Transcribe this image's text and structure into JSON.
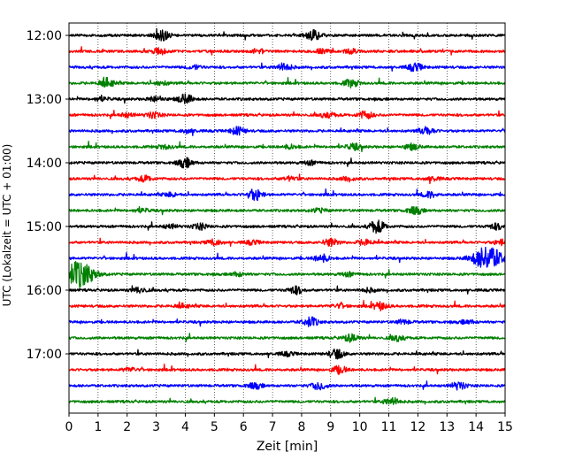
{
  "chart_data": {
    "type": "line",
    "title": "",
    "xlabel": "Zeit  [min]",
    "ylabel": "UTC (Lokalzeit = UTC + 01:00)",
    "xlim": [
      0,
      15
    ],
    "x_ticks": [
      "0",
      "1",
      "2",
      "3",
      "4",
      "5",
      "6",
      "7",
      "8",
      "9",
      "10",
      "11",
      "12",
      "13",
      "14",
      "15"
    ],
    "y_ticks": [
      "12:00",
      "13:00",
      "14:00",
      "15:00",
      "16:00",
      "17:00"
    ],
    "grid": "vertical dotted",
    "trace_colors": [
      "#000000",
      "#ff0000",
      "#0000ff",
      "#008000"
    ],
    "traces_start": "12:00",
    "trace_interval_min": 15,
    "traces": [
      {
        "start": "12:00",
        "color": "#000000",
        "events": [
          [
            3.2,
            6
          ],
          [
            8.4,
            5
          ]
        ]
      },
      {
        "start": "12:15",
        "color": "#ff0000",
        "events": [
          [
            3.1,
            3
          ],
          [
            6.5,
            2
          ],
          [
            8.7,
            2
          ],
          [
            9.7,
            2
          ]
        ]
      },
      {
        "start": "12:30",
        "color": "#0000ff",
        "events": [
          [
            4.3,
            2
          ],
          [
            7.4,
            4
          ],
          [
            11.9,
            4
          ]
        ]
      },
      {
        "start": "12:45",
        "color": "#008000",
        "events": [
          [
            1.3,
            5
          ],
          [
            3.2,
            2
          ],
          [
            9.7,
            4
          ]
        ]
      },
      {
        "start": "13:00",
        "color": "#000000",
        "events": [
          [
            1.1,
            2
          ],
          [
            3.0,
            3
          ],
          [
            4.0,
            5
          ]
        ]
      },
      {
        "start": "13:15",
        "color": "#ff0000",
        "events": [
          [
            2.0,
            2
          ],
          [
            2.9,
            3
          ],
          [
            8.9,
            3
          ],
          [
            10.2,
            4
          ]
        ]
      },
      {
        "start": "13:30",
        "color": "#0000ff",
        "events": [
          [
            4.1,
            2
          ],
          [
            5.8,
            4
          ],
          [
            12.3,
            4
          ]
        ]
      },
      {
        "start": "13:45",
        "color": "#008000",
        "events": [
          [
            3.3,
            2
          ],
          [
            7.6,
            2
          ],
          [
            9.8,
            3
          ],
          [
            11.8,
            3
          ]
        ]
      },
      {
        "start": "14:00",
        "color": "#000000",
        "events": [
          [
            4.0,
            5
          ],
          [
            8.3,
            2
          ]
        ]
      },
      {
        "start": "14:15",
        "color": "#ff0000",
        "events": [
          [
            2.6,
            3
          ],
          [
            7.6,
            2
          ],
          [
            9.6,
            2
          ],
          [
            12.5,
            2
          ]
        ]
      },
      {
        "start": "14:30",
        "color": "#0000ff",
        "events": [
          [
            3.5,
            2
          ],
          [
            6.4,
            6
          ],
          [
            12.4,
            3
          ]
        ]
      },
      {
        "start": "14:45",
        "color": "#008000",
        "events": [
          [
            2.5,
            2
          ],
          [
            8.6,
            2
          ],
          [
            11.9,
            4
          ]
        ]
      },
      {
        "start": "15:00",
        "color": "#000000",
        "events": [
          [
            3.5,
            2
          ],
          [
            4.5,
            3
          ],
          [
            10.6,
            7
          ],
          [
            14.7,
            3
          ]
        ]
      },
      {
        "start": "15:15",
        "color": "#ff0000",
        "events": [
          [
            5.0,
            3
          ],
          [
            6.3,
            2
          ],
          [
            9.0,
            4
          ],
          [
            10.2,
            3
          ],
          [
            14.9,
            3
          ]
        ]
      },
      {
        "start": "15:30",
        "color": "#0000ff",
        "events": [
          [
            8.7,
            4
          ],
          [
            14.4,
            13
          ]
        ]
      },
      {
        "start": "15:45",
        "color": "#008000",
        "events": [
          [
            0.35,
            14
          ],
          [
            5.8,
            2
          ],
          [
            9.6,
            2
          ]
        ]
      },
      {
        "start": "16:00",
        "color": "#000000",
        "events": [
          [
            2.4,
            3
          ],
          [
            7.8,
            4
          ],
          [
            10.3,
            2
          ]
        ]
      },
      {
        "start": "16:15",
        "color": "#ff0000",
        "events": [
          [
            3.9,
            2
          ],
          [
            9.3,
            2
          ],
          [
            10.7,
            4
          ]
        ]
      },
      {
        "start": "16:30",
        "color": "#0000ff",
        "events": [
          [
            8.3,
            5
          ],
          [
            11.5,
            2
          ],
          [
            13.7,
            2
          ]
        ]
      },
      {
        "start": "16:45",
        "color": "#008000",
        "events": [
          [
            9.7,
            4
          ],
          [
            11.3,
            3
          ]
        ]
      },
      {
        "start": "17:00",
        "color": "#000000",
        "events": [
          [
            7.5,
            2
          ],
          [
            9.2,
            5
          ]
        ]
      },
      {
        "start": "17:15",
        "color": "#ff0000",
        "events": [
          [
            2.1,
            2
          ],
          [
            9.3,
            4
          ]
        ]
      },
      {
        "start": "17:30",
        "color": "#0000ff",
        "events": [
          [
            6.4,
            3
          ],
          [
            8.6,
            4
          ],
          [
            13.4,
            4
          ]
        ]
      },
      {
        "start": "17:45",
        "color": "#008000",
        "events": [
          [
            11.1,
            4
          ]
        ]
      }
    ]
  }
}
